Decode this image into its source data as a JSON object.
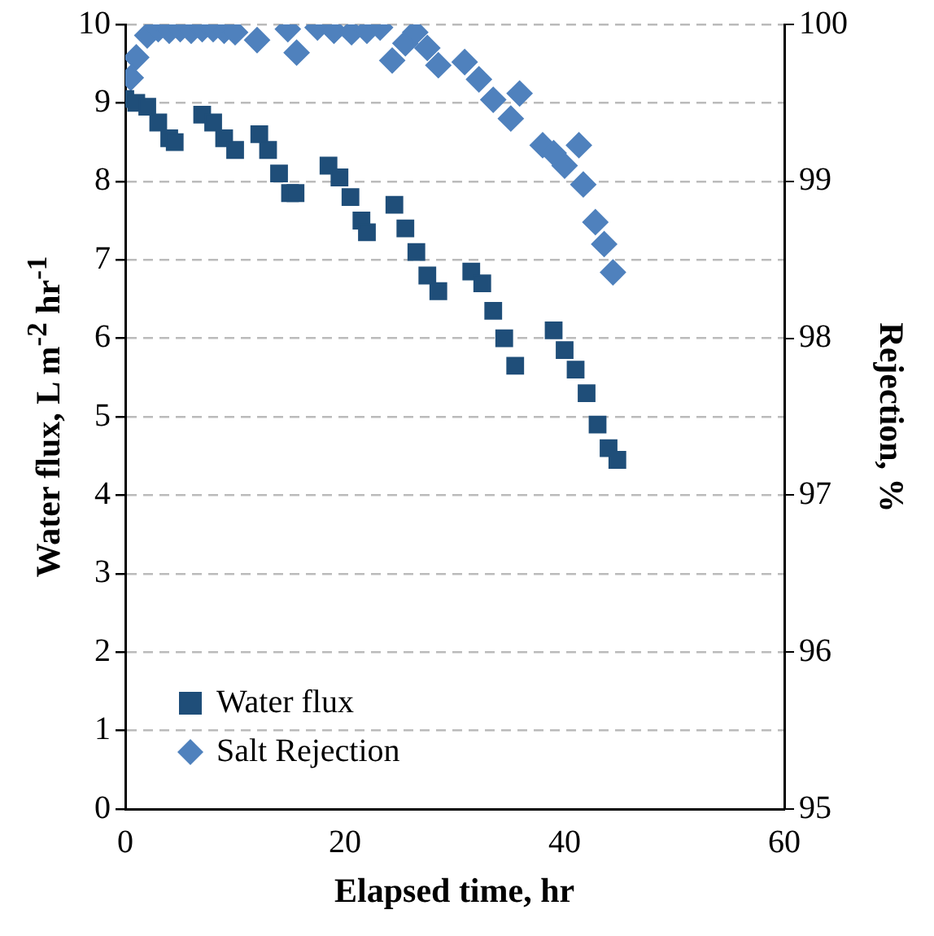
{
  "chart_data": {
    "type": "scatter",
    "xlabel": "Elapsed time, hr",
    "ylabel": "Water flux, L m$^{-2}$ hr$^{-1}$",
    "y2label": "Rejection, %",
    "xlim": [
      0,
      60
    ],
    "xticks": [
      0,
      20,
      40,
      60
    ],
    "ylim": [
      0,
      10
    ],
    "yticks": [
      0,
      1,
      2,
      3,
      4,
      5,
      6,
      7,
      8,
      9,
      10
    ],
    "y2lim": [
      95,
      100
    ],
    "y2ticks": [
      95,
      96,
      97,
      98,
      99,
      100
    ],
    "grid": "y",
    "legend": "bottom left",
    "series": [
      {
        "name": "Water flux",
        "color": "#1f4e79",
        "marker": "square",
        "x": [
          0,
          1,
          2,
          3,
          4,
          4.5,
          7,
          8,
          9,
          10,
          12.2,
          13,
          14,
          15,
          15.5,
          18.5,
          19.5,
          20.5,
          21.5,
          22,
          24.5,
          25.5,
          26.5,
          27.5,
          28.5,
          31.5,
          32.5,
          33.5,
          34.5,
          35.5,
          39,
          40,
          41,
          42,
          43,
          44,
          44.8
        ],
        "values": [
          9.05,
          9.0,
          8.95,
          8.75,
          8.55,
          8.5,
          8.85,
          8.75,
          8.55,
          8.4,
          8.6,
          8.4,
          8.1,
          7.85,
          7.85,
          8.2,
          8.05,
          7.8,
          7.5,
          7.35,
          7.7,
          7.4,
          7.1,
          6.8,
          6.6,
          6.85,
          6.7,
          6.35,
          6.0,
          5.65,
          6.1,
          5.85,
          5.6,
          5.3,
          4.9,
          4.6,
          4.45
        ]
      },
      {
        "name": "Salt Rejection",
        "color": "#4f81bd",
        "marker": "diamond",
        "axis": "y2",
        "x": [
          0.5,
          1,
          2,
          3,
          4,
          5,
          6,
          7,
          8,
          9,
          10,
          12,
          14.8,
          15.6,
          17.5,
          19,
          20.6,
          22,
          23.2,
          24.3,
          25.5,
          26.4,
          27.5,
          28.5,
          30.9,
          32.2,
          33.5,
          35.1,
          35.9,
          38,
          39,
          40,
          41.3,
          41.7,
          42.8,
          43.6,
          44.4
        ],
        "values": [
          99.66,
          99.79,
          99.93,
          99.97,
          99.96,
          99.97,
          99.96,
          99.97,
          99.97,
          99.96,
          99.95,
          99.9,
          99.97,
          99.82,
          99.98,
          99.96,
          99.95,
          99.96,
          99.98,
          99.77,
          99.88,
          99.95,
          99.85,
          99.74,
          99.76,
          99.65,
          99.52,
          99.4,
          99.56,
          99.23,
          99.18,
          99.1,
          99.23,
          98.98,
          98.74,
          98.6,
          98.42
        ]
      }
    ]
  }
}
